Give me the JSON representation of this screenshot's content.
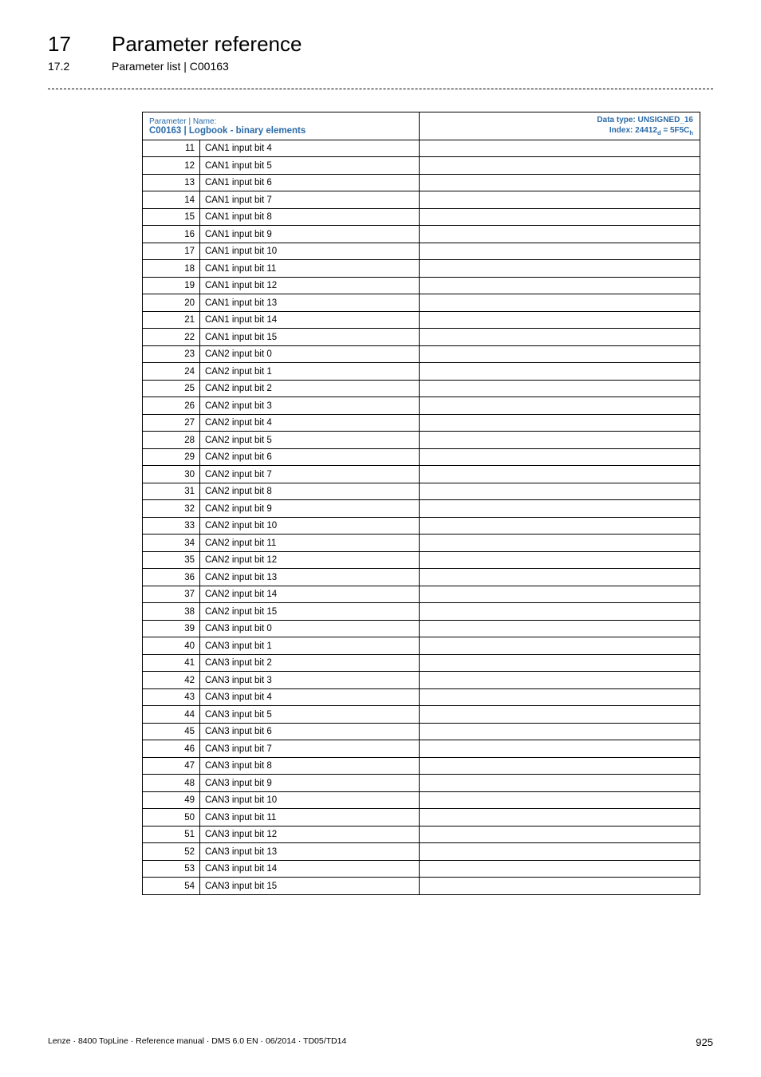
{
  "header": {
    "chapter_num": "17",
    "chapter_title": "Parameter reference",
    "sub_num": "17.2",
    "sub_title": "Parameter list | C00163"
  },
  "table_header": {
    "left_line1": "Parameter | Name:",
    "left_line2": "C00163 | Logbook - binary elements",
    "right_line1": "Data type: UNSIGNED_16",
    "right_line2_prefix": "Index: 24412",
    "right_line2_sub1": "d",
    "right_line2_mid": " = 5F5C",
    "right_line2_sub2": "h"
  },
  "rows": [
    {
      "idx": "11",
      "name": "CAN1 input bit 4"
    },
    {
      "idx": "12",
      "name": "CAN1 input bit 5"
    },
    {
      "idx": "13",
      "name": "CAN1 input bit 6"
    },
    {
      "idx": "14",
      "name": "CAN1 input bit 7"
    },
    {
      "idx": "15",
      "name": "CAN1 input bit 8"
    },
    {
      "idx": "16",
      "name": "CAN1 input bit 9"
    },
    {
      "idx": "17",
      "name": "CAN1 input bit 10"
    },
    {
      "idx": "18",
      "name": "CAN1 input bit 11"
    },
    {
      "idx": "19",
      "name": "CAN1 input bit 12"
    },
    {
      "idx": "20",
      "name": "CAN1 input bit 13"
    },
    {
      "idx": "21",
      "name": "CAN1 input bit 14"
    },
    {
      "idx": "22",
      "name": "CAN1 input bit 15"
    },
    {
      "idx": "23",
      "name": "CAN2 input bit 0"
    },
    {
      "idx": "24",
      "name": "CAN2 input bit 1"
    },
    {
      "idx": "25",
      "name": "CAN2 input bit 2"
    },
    {
      "idx": "26",
      "name": "CAN2 input bit 3"
    },
    {
      "idx": "27",
      "name": "CAN2 input bit 4"
    },
    {
      "idx": "28",
      "name": "CAN2 input bit 5"
    },
    {
      "idx": "29",
      "name": "CAN2 input bit 6"
    },
    {
      "idx": "30",
      "name": "CAN2 input bit 7"
    },
    {
      "idx": "31",
      "name": "CAN2 input bit 8"
    },
    {
      "idx": "32",
      "name": "CAN2 input bit 9"
    },
    {
      "idx": "33",
      "name": "CAN2 input bit 10"
    },
    {
      "idx": "34",
      "name": "CAN2 input bit 11"
    },
    {
      "idx": "35",
      "name": "CAN2 input bit 12"
    },
    {
      "idx": "36",
      "name": "CAN2 input bit 13"
    },
    {
      "idx": "37",
      "name": "CAN2 input bit 14"
    },
    {
      "idx": "38",
      "name": "CAN2 input bit 15"
    },
    {
      "idx": "39",
      "name": "CAN3 input bit 0"
    },
    {
      "idx": "40",
      "name": "CAN3 input bit 1"
    },
    {
      "idx": "41",
      "name": "CAN3 input bit 2"
    },
    {
      "idx": "42",
      "name": "CAN3 input bit 3"
    },
    {
      "idx": "43",
      "name": "CAN3 input bit 4"
    },
    {
      "idx": "44",
      "name": "CAN3 input bit 5"
    },
    {
      "idx": "45",
      "name": "CAN3 input bit 6"
    },
    {
      "idx": "46",
      "name": "CAN3 input bit 7"
    },
    {
      "idx": "47",
      "name": "CAN3 input bit 8"
    },
    {
      "idx": "48",
      "name": "CAN3 input bit 9"
    },
    {
      "idx": "49",
      "name": "CAN3 input bit 10"
    },
    {
      "idx": "50",
      "name": "CAN3 input bit 11"
    },
    {
      "idx": "51",
      "name": "CAN3 input bit 12"
    },
    {
      "idx": "52",
      "name": "CAN3 input bit 13"
    },
    {
      "idx": "53",
      "name": "CAN3 input bit 14"
    },
    {
      "idx": "54",
      "name": "CAN3 input bit 15"
    }
  ],
  "footer": {
    "left": "Lenze · 8400 TopLine · Reference manual · DMS 6.0 EN · 06/2014 · TD05/TD14",
    "page": "925"
  }
}
